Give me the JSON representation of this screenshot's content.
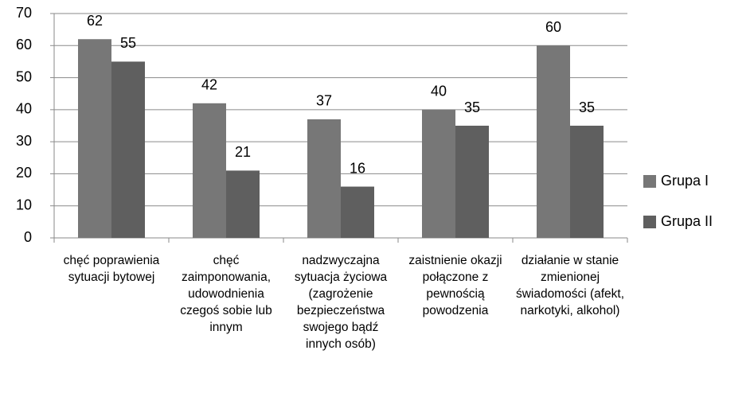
{
  "chart_data": {
    "type": "bar",
    "categories": [
      "chęć poprawienia sytuacji bytowej",
      "chęć zaimponowania, udowodnienia czegoś sobie lub innym",
      "nadzwyczajna sytuacja życiowa (zagrożenie bezpieczeństwa swojego bądź innych osób)",
      "zaistnienie okazji połączone z pewnością powodzenia",
      "działanie w stanie zmienionej świadomości (afekt, narkotyki, alkohol)"
    ],
    "series": [
      {
        "name": "Grupa I",
        "color": "#777777",
        "values": [
          62,
          42,
          37,
          40,
          60
        ]
      },
      {
        "name": "Grupa II",
        "color": "#5f5f5f",
        "values": [
          55,
          21,
          16,
          35,
          35
        ]
      }
    ],
    "ylim": [
      0,
      70
    ],
    "yticks": [
      0,
      10,
      20,
      30,
      40,
      50,
      60,
      70
    ],
    "grid": true,
    "legend": "right"
  }
}
